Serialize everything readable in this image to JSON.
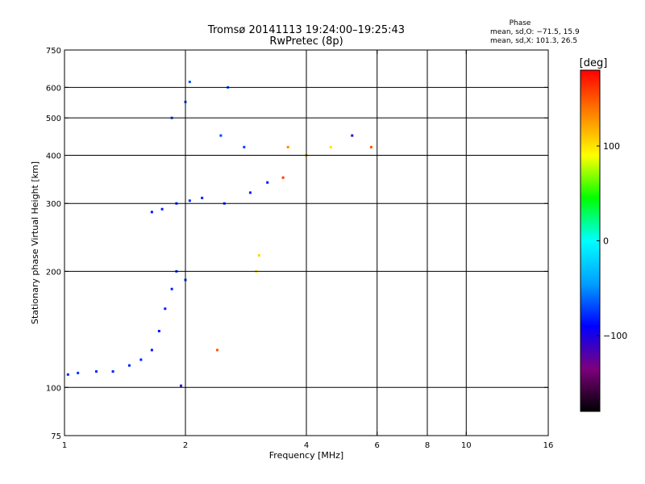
{
  "chart_data": {
    "type": "scatter",
    "title": "Tromsø 20141113 19:24:00–19:25:43",
    "subtitle": "RwPretec (8p)",
    "phase_info": {
      "heading": "Phase",
      "line_o": "mean, sd,O: −71.5, 15.9",
      "line_x": "mean, sd,X: 101.3, 26.5"
    },
    "xlabel": "Frequency [MHz]",
    "ylabel": "Stationary phase Virtual Height [km]",
    "x_scale": "log",
    "y_scale": "log",
    "xlim": [
      1,
      16
    ],
    "ylim": [
      75,
      750
    ],
    "x_ticks": [
      1,
      2,
      4,
      6,
      8,
      10,
      16
    ],
    "x_tick_labels": [
      "1",
      "2",
      "4",
      "6",
      "8",
      "10",
      "16"
    ],
    "y_ticks": [
      75,
      100,
      200,
      300,
      400,
      500,
      600,
      750
    ],
    "y_tick_labels": [
      "75",
      "100",
      "200",
      "300",
      "400",
      "500",
      "600",
      "750"
    ],
    "grid_x": [
      2,
      4,
      6,
      8,
      10
    ],
    "grid_y": [
      100,
      200,
      300,
      400,
      500,
      600
    ],
    "colorbar": {
      "label": "[deg]",
      "range": [
        -180,
        180
      ],
      "ticks": [
        100,
        0,
        -100
      ],
      "tick_labels": [
        "100",
        "0",
        "−100"
      ],
      "colormap": [
        "#000000",
        "#7d007d",
        "#0000ff",
        "#00a0ff",
        "#00ffff",
        "#00ff00",
        "#ffff00",
        "#ff8000",
        "#ff0000"
      ]
    },
    "series": [
      {
        "points": [
          {
            "x": 1.02,
            "y": 108,
            "phase": -80
          },
          {
            "x": 1.08,
            "y": 109,
            "phase": -75
          },
          {
            "x": 1.2,
            "y": 110,
            "phase": -78
          },
          {
            "x": 1.32,
            "y": 110,
            "phase": -80
          },
          {
            "x": 1.45,
            "y": 114,
            "phase": -82
          },
          {
            "x": 1.55,
            "y": 118,
            "phase": -80
          },
          {
            "x": 1.65,
            "y": 125,
            "phase": -85
          },
          {
            "x": 1.72,
            "y": 140,
            "phase": -85
          },
          {
            "x": 1.78,
            "y": 160,
            "phase": -82
          },
          {
            "x": 1.85,
            "y": 180,
            "phase": -80
          },
          {
            "x": 1.9,
            "y": 200,
            "phase": -78
          },
          {
            "x": 2.0,
            "y": 190,
            "phase": -75
          },
          {
            "x": 1.65,
            "y": 285,
            "phase": -85
          },
          {
            "x": 1.75,
            "y": 290,
            "phase": -82
          },
          {
            "x": 1.9,
            "y": 300,
            "phase": -80
          },
          {
            "x": 2.05,
            "y": 305,
            "phase": -78
          },
          {
            "x": 2.2,
            "y": 310,
            "phase": -80
          },
          {
            "x": 2.5,
            "y": 300,
            "phase": -80
          },
          {
            "x": 2.9,
            "y": 320,
            "phase": -82
          },
          {
            "x": 3.2,
            "y": 340,
            "phase": -85
          },
          {
            "x": 1.85,
            "y": 500,
            "phase": -70
          },
          {
            "x": 2.0,
            "y": 550,
            "phase": -70
          },
          {
            "x": 2.05,
            "y": 620,
            "phase": -65
          },
          {
            "x": 2.45,
            "y": 450,
            "phase": -70
          },
          {
            "x": 2.55,
            "y": 600,
            "phase": -68
          },
          {
            "x": 2.8,
            "y": 420,
            "phase": -72
          },
          {
            "x": 1.95,
            "y": 101,
            "phase": -110
          },
          {
            "x": 3.0,
            "y": 200,
            "phase": 100
          },
          {
            "x": 3.05,
            "y": 220,
            "phase": 105
          },
          {
            "x": 2.4,
            "y": 125,
            "phase": 150
          },
          {
            "x": 3.5,
            "y": 350,
            "phase": 160
          },
          {
            "x": 3.6,
            "y": 420,
            "phase": 130
          },
          {
            "x": 4.0,
            "y": 400,
            "phase": 120
          },
          {
            "x": 4.6,
            "y": 420,
            "phase": 100
          },
          {
            "x": 5.2,
            "y": 450,
            "phase": -110
          },
          {
            "x": 5.8,
            "y": 420,
            "phase": 150
          }
        ]
      }
    ]
  }
}
